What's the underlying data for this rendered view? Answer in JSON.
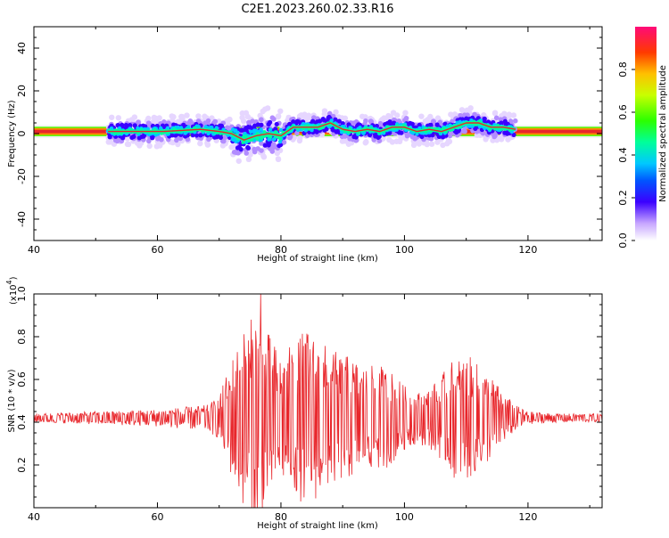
{
  "title": "C2E1.2023.260.02.33.R16",
  "colors": {
    "snr_line": "#e8262b",
    "ridge": "#e8262b",
    "frame": "#000000",
    "background": "#ffffff"
  },
  "chart_data": [
    {
      "type": "heatmap",
      "title": "C2E1.2023.260.02.33.R16",
      "xlabel": "Height of straight line (km)",
      "ylabel": "Frequency (Hz)",
      "xlim": [
        40,
        132
      ],
      "ylim": [
        -50,
        50
      ],
      "x_ticks": [
        40,
        60,
        80,
        100,
        120
      ],
      "y_ticks": [
        -40,
        -20,
        0,
        20,
        40
      ],
      "x_tick_labels": [
        "40",
        "60",
        "80",
        "100",
        "120"
      ],
      "y_tick_labels": [
        "-40",
        "-20",
        "0",
        "20",
        "40"
      ],
      "colorbar": {
        "label": "Normalized spectral amplitude",
        "range": [
          0.0,
          1.0
        ],
        "ticks": [
          0.0,
          0.2,
          0.4,
          0.6,
          0.8
        ],
        "tick_labels": [
          "0.0",
          "0.2",
          "0.4",
          "0.6",
          "0.8"
        ],
        "colormap": "rainbow"
      },
      "band_extent": {
        "x_start": 40,
        "x_end": 132,
        "low_hz": -1,
        "high_hz": 3
      },
      "doppler_ridge": {
        "x": [
          52,
          55,
          58,
          61,
          64,
          67,
          70,
          72,
          74,
          76,
          78,
          80,
          82,
          84,
          86,
          88,
          90,
          92,
          94,
          96,
          98,
          100,
          102,
          104,
          106,
          108,
          110,
          112,
          114,
          116,
          118
        ],
        "freq": [
          1,
          1,
          1,
          1,
          1.5,
          2,
          1,
          0,
          -3,
          -1,
          0,
          -1,
          3,
          3,
          3,
          5,
          2,
          1,
          2,
          1,
          3,
          3,
          1,
          2,
          1,
          3,
          5,
          5,
          3,
          3,
          2
        ]
      }
    },
    {
      "type": "line",
      "xlabel": "Height of straight line (km)",
      "ylabel": "SNR (10 * v/v)",
      "y_scale_label": "(x10",
      "y_scale_exponent": "4",
      "y_scale_close": ")",
      "xlim": [
        40,
        132
      ],
      "ylim": [
        0,
        1.0
      ],
      "x_ticks": [
        40,
        60,
        80,
        100,
        120
      ],
      "y_ticks": [
        0.2,
        0.4,
        0.6,
        0.8,
        1.0
      ],
      "x_tick_labels": [
        "40",
        "60",
        "80",
        "100",
        "120"
      ],
      "y_tick_labels": [
        "0.2",
        "0.4",
        "0.6",
        "0.8",
        "1.0"
      ],
      "series": [
        {
          "baseline": 0.42,
          "envelope": {
            "x": [
              40,
              50,
              60,
              68,
              70,
              72,
              74,
              76,
              78,
              80,
              82,
              84,
              86,
              88,
              90,
              92,
              94,
              96,
              98,
              100,
              102,
              104,
              106,
              108,
              110,
              112,
              114,
              116,
              118,
              120,
              125,
              132
            ],
            "amp": [
              0.02,
              0.03,
              0.04,
              0.06,
              0.1,
              0.28,
              0.42,
              0.5,
              0.4,
              0.3,
              0.35,
              0.42,
              0.38,
              0.32,
              0.3,
              0.28,
              0.24,
              0.25,
              0.22,
              0.15,
              0.12,
              0.14,
              0.2,
              0.28,
              0.3,
              0.25,
              0.2,
              0.12,
              0.06,
              0.03,
              0.02,
              0.02
            ]
          },
          "peak": {
            "x": 76.7,
            "y": 1.0
          }
        }
      ]
    }
  ]
}
